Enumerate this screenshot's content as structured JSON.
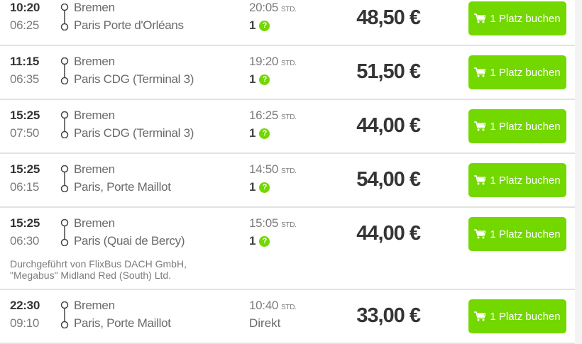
{
  "accent_color": "#73d700",
  "duration_unit": "STD.",
  "book_label": "1 Platz buchen",
  "rides": [
    {
      "departure": "10:20",
      "arrival": "06:25",
      "from": "Bremen",
      "to": "Paris Porte d'Orléans",
      "duration": "20:05",
      "transfers": "1",
      "price": "48,50 €"
    },
    {
      "departure": "11:15",
      "arrival": "06:35",
      "from": "Bremen",
      "to": "Paris CDG (Terminal 3)",
      "duration": "19:20",
      "transfers": "1",
      "price": "51,50 €"
    },
    {
      "departure": "15:25",
      "arrival": "07:50",
      "from": "Bremen",
      "to": "Paris CDG (Terminal 3)",
      "duration": "16:25",
      "transfers": "1",
      "price": "44,00 €"
    },
    {
      "departure": "15:25",
      "arrival": "06:15",
      "from": "Bremen",
      "to": "Paris, Porte Maillot",
      "duration": "14:50",
      "transfers": "1",
      "price": "54,00 €"
    },
    {
      "departure": "15:25",
      "arrival": "06:30",
      "from": "Bremen",
      "to": "Paris (Quai de Bercy)",
      "duration": "15:05",
      "transfers": "1",
      "price": "44,00 €",
      "operator": "Durchgeführt von FlixBus DACH GmbH, \"Megabus\" Midland Red (South) Ltd."
    },
    {
      "departure": "22:30",
      "arrival": "09:10",
      "from": "Bremen",
      "to": "Paris, Porte Maillot",
      "duration": "10:40",
      "direct": "Direkt",
      "price": "33,00 €"
    }
  ]
}
